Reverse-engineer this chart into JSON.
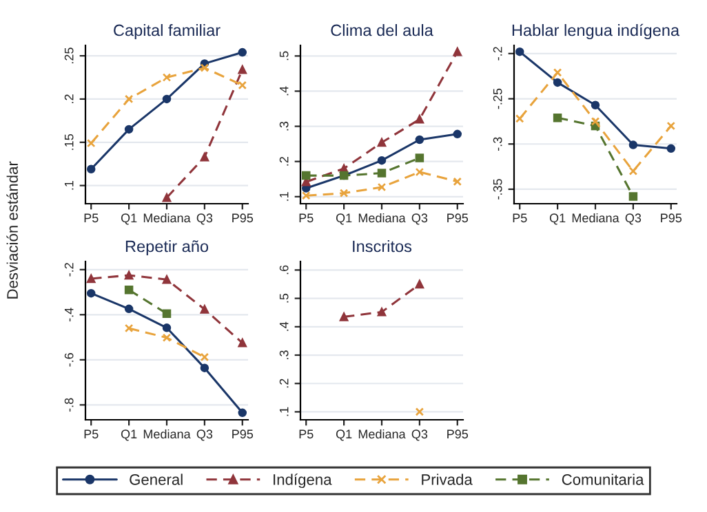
{
  "chart_data": [
    {
      "type": "line",
      "title": "Capital familiar",
      "ylabel": "Desviación estándar",
      "categories": [
        "P5",
        "Q1",
        "Mediana",
        "Q3",
        "P95"
      ],
      "ylim": [
        0.079,
        0.262
      ],
      "yticks": [
        {
          "value": 0.1,
          "label": ".1"
        },
        {
          "value": 0.15,
          "label": ".15"
        },
        {
          "value": 0.2,
          "label": ".2"
        },
        {
          "value": 0.25,
          "label": ".25"
        }
      ],
      "grid": "y",
      "legend": "bottom",
      "series": [
        {
          "name": "General",
          "color": "#1a3668",
          "marker": "circle",
          "line_style": "solid",
          "values": [
            0.119,
            0.165,
            0.2,
            0.241,
            0.254
          ]
        },
        {
          "name": "Indígena",
          "color": "#90353b",
          "marker": "triangle",
          "line_style": "dashed",
          "values": [
            null,
            null,
            0.086,
            0.133,
            0.234
          ]
        },
        {
          "name": "Privada",
          "color": "#e8a33c",
          "marker": "cross",
          "line_style": "dashed",
          "values": [
            0.149,
            0.2,
            0.225,
            0.236,
            0.216
          ]
        }
      ]
    },
    {
      "type": "line",
      "title": "Clima del aula",
      "categories": [
        "P5",
        "Q1",
        "Mediana",
        "Q3",
        "P95"
      ],
      "ylim": [
        0.08,
        0.53
      ],
      "yticks": [
        {
          "value": 0.1,
          "label": ".1"
        },
        {
          "value": 0.2,
          "label": ".2"
        },
        {
          "value": 0.3,
          "label": ".3"
        },
        {
          "value": 0.4,
          "label": ".4"
        },
        {
          "value": 0.5,
          "label": ".5"
        }
      ],
      "grid": "y",
      "legend": "bottom",
      "series": [
        {
          "name": "General",
          "color": "#1a3668",
          "marker": "circle",
          "line_style": "solid",
          "values": [
            0.124,
            0.16,
            0.203,
            0.262,
            0.278
          ]
        },
        {
          "name": "Indígena",
          "color": "#90353b",
          "marker": "triangle",
          "line_style": "dashed",
          "values": [
            0.142,
            0.18,
            0.254,
            0.32,
            0.512
          ]
        },
        {
          "name": "Comunitaria",
          "color": "#55752f",
          "marker": "square",
          "line_style": "dashed",
          "values": [
            0.16,
            0.16,
            0.167,
            0.21,
            null
          ]
        },
        {
          "name": "Privada",
          "color": "#e8a33c",
          "marker": "cross",
          "line_style": "dashed",
          "values": [
            0.103,
            0.11,
            0.127,
            0.17,
            0.143
          ]
        }
      ]
    },
    {
      "type": "line",
      "title": "Hablar lengua indígena",
      "categories": [
        "P5",
        "Q1",
        "Mediana",
        "Q3",
        "P95"
      ],
      "ylim": [
        -0.366,
        -0.191
      ],
      "yticks": [
        {
          "value": -0.35,
          "label": "-.35"
        },
        {
          "value": -0.3,
          "label": "-.3"
        },
        {
          "value": -0.25,
          "label": "-.25"
        },
        {
          "value": -0.2,
          "label": "-.2"
        }
      ],
      "grid": "y",
      "legend": "bottom",
      "series": [
        {
          "name": "General",
          "color": "#1a3668",
          "marker": "circle",
          "line_style": "solid",
          "values": [
            -0.198,
            -0.232,
            -0.257,
            -0.301,
            -0.305
          ]
        },
        {
          "name": "Comunitaria",
          "color": "#55752f",
          "marker": "square",
          "line_style": "dashed",
          "values": [
            null,
            -0.271,
            -0.28,
            -0.358,
            null
          ]
        },
        {
          "name": "Privada",
          "color": "#e8a33c",
          "marker": "cross",
          "line_style": "dashed",
          "values": [
            -0.272,
            -0.221,
            -0.275,
            -0.33,
            -0.28
          ]
        }
      ]
    },
    {
      "type": "line",
      "title": "Repetir año",
      "categories": [
        "P5",
        "Q1",
        "Mediana",
        "Q3",
        "P95"
      ],
      "ylim": [
        -0.866,
        -0.164
      ],
      "yticks": [
        {
          "value": -0.8,
          "label": "-.8"
        },
        {
          "value": -0.6,
          "label": "-.6"
        },
        {
          "value": -0.4,
          "label": "-.4"
        },
        {
          "value": -0.2,
          "label": "-.2"
        }
      ],
      "grid": "y",
      "legend": "bottom",
      "series": [
        {
          "name": "General",
          "color": "#1a3668",
          "marker": "circle",
          "line_style": "solid",
          "values": [
            -0.305,
            -0.374,
            -0.458,
            -0.636,
            -0.835
          ]
        },
        {
          "name": "Indígena",
          "color": "#90353b",
          "marker": "triangle",
          "line_style": "dashed",
          "values": [
            -0.24,
            -0.225,
            -0.244,
            -0.376,
            -0.525
          ]
        },
        {
          "name": "Comunitaria",
          "color": "#55752f",
          "marker": "square",
          "line_style": "dashed",
          "values": [
            null,
            -0.29,
            -0.395,
            null,
            null
          ]
        },
        {
          "name": "Privada",
          "color": "#e8a33c",
          "marker": "cross",
          "line_style": "dashed",
          "values": [
            null,
            -0.46,
            -0.502,
            -0.588,
            null
          ]
        }
      ]
    },
    {
      "type": "line",
      "title": "Inscritos",
      "categories": [
        "P5",
        "Q1",
        "Mediana",
        "Q3",
        "P95"
      ],
      "ylim": [
        0.072,
        0.63
      ],
      "yticks": [
        {
          "value": 0.1,
          "label": ".1"
        },
        {
          "value": 0.2,
          "label": ".2"
        },
        {
          "value": 0.3,
          "label": ".3"
        },
        {
          "value": 0.4,
          "label": ".4"
        },
        {
          "value": 0.5,
          "label": ".5"
        },
        {
          "value": 0.6,
          "label": ".6"
        }
      ],
      "grid": "y",
      "legend": "bottom",
      "series": [
        {
          "name": "Indígena",
          "color": "#90353b",
          "marker": "triangle",
          "line_style": "dashed",
          "values": [
            null,
            0.435,
            0.452,
            0.55,
            null
          ]
        },
        {
          "name": "Privada",
          "color": "#e8a33c",
          "marker": "cross",
          "line_style": "dashed",
          "values": [
            null,
            null,
            null,
            0.1,
            null
          ]
        }
      ]
    }
  ]
}
